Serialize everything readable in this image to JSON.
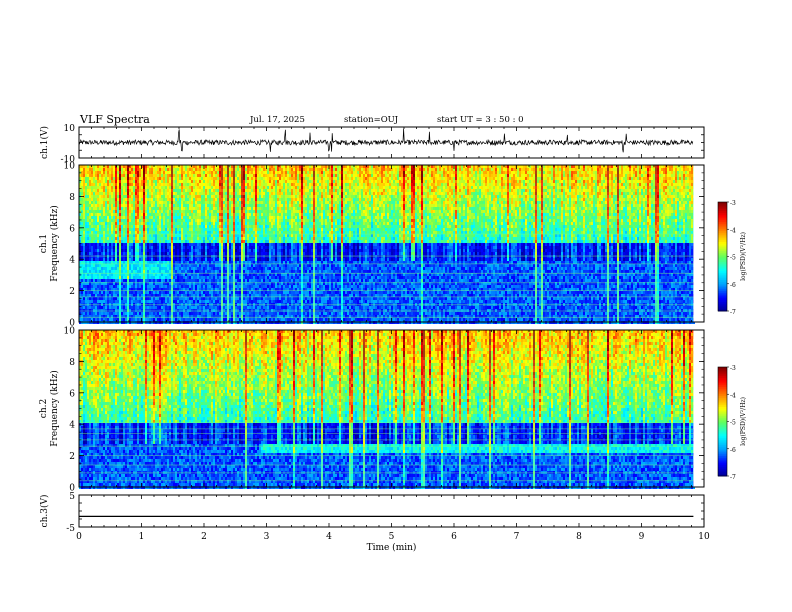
{
  "header": {
    "title": "VLF Spectra",
    "date": "Jul. 17, 2025",
    "station": "station=OUJ",
    "start": "start UT =  3 : 50 : 0"
  },
  "colorbar": {
    "label": "log(PSD)(V²/Hz)",
    "ticks": [
      "-3",
      "-4",
      "-5",
      "-6",
      "-7"
    ],
    "range": [
      -7,
      -3
    ],
    "colors": [
      "#00008f",
      "#0000ff",
      "#00a0ff",
      "#00ffff",
      "#60ff60",
      "#ffff00",
      "#ff8000",
      "#ff0000",
      "#800000"
    ]
  },
  "chart_data": [
    {
      "type": "line",
      "name": "ch1-waveform",
      "ylabel": "ch.1(V)",
      "yticks": [
        "10",
        "-10"
      ],
      "ylim": [
        -10,
        10
      ],
      "xlim": [
        0,
        10
      ],
      "baseline": 0,
      "x_end": 9.83,
      "spikes_min": [
        1.6,
        1.65,
        2.1,
        3.0,
        3.05,
        3.3,
        3.7,
        4.0,
        4.05,
        5.2,
        5.6,
        6.0,
        6.8,
        7.8,
        8.7,
        8.75
      ]
    },
    {
      "type": "heatmap",
      "name": "ch1-spectrogram",
      "ylabel": "ch.1\nFrequency (kHz)",
      "yticks": [
        "0",
        "2",
        "4",
        "6",
        "8",
        "10"
      ],
      "ylim": [
        0,
        10
      ],
      "xlim": [
        0,
        10
      ],
      "x_end": 9.83,
      "cutoff_khz": 5.2,
      "zlim": [
        -7,
        -3
      ]
    },
    {
      "type": "heatmap",
      "name": "ch2-spectrogram",
      "ylabel": "ch.2\nFrequency (kHz)",
      "yticks": [
        "0",
        "2",
        "4",
        "6",
        "8",
        "10"
      ],
      "ylim": [
        0,
        10
      ],
      "xlim": [
        0,
        10
      ],
      "x_end": 9.83,
      "cutoff_khz": 4.2,
      "zlim": [
        -7,
        -3
      ]
    },
    {
      "type": "line",
      "name": "ch3-waveform",
      "ylabel": "ch.3(V)",
      "yticks": [
        "5",
        "-5"
      ],
      "ylim": [
        -5,
        5
      ],
      "xlim": [
        0,
        10
      ],
      "xlabel": "Time (min)",
      "xticks": [
        "0",
        "1",
        "2",
        "3",
        "4",
        "5",
        "6",
        "7",
        "8",
        "9",
        "10"
      ],
      "x": [
        0,
        9.83
      ],
      "y": [
        -1.7,
        -1.7
      ]
    }
  ]
}
